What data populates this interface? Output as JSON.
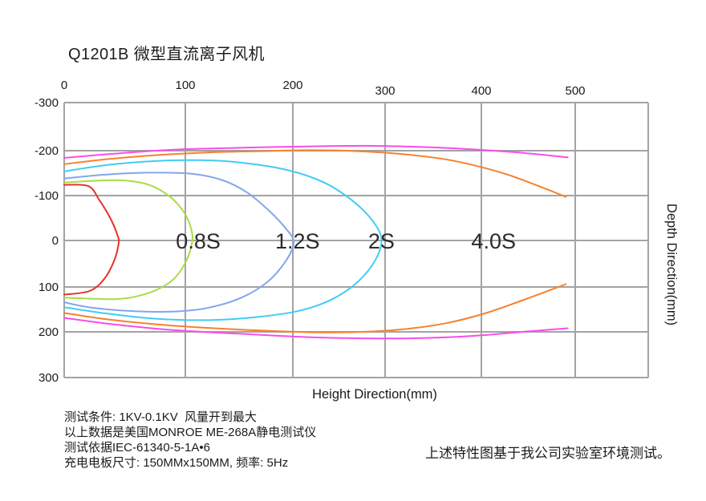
{
  "chart_data": {
    "type": "line",
    "subtype": "contour-map-of-discharge-time",
    "title": "Q1201B 微型直流离子风机",
    "xlabel": "Height Direction(mm)",
    "ylabel": "Depth Direction(mm)",
    "x_ticks": [
      0,
      100,
      200,
      300,
      400,
      500
    ],
    "y_ticks": [
      -300,
      -200,
      -100,
      0,
      100,
      200,
      300
    ],
    "xlim": [
      0,
      578
    ],
    "ylim": [
      -300,
      300
    ],
    "grid": true,
    "grid_color": "#a3a3a3",
    "label_color": "#2b2b2b",
    "tick_color": "#1a1a1a",
    "contour_labels": [
      {
        "text": "0.8S",
        "x": 112,
        "y": 0
      },
      {
        "text": "1.2S",
        "x": 205,
        "y": 0
      },
      {
        "text": "2S",
        "x": 296,
        "y": 0
      },
      {
        "text": "4.0S",
        "x": 413,
        "y": 0
      }
    ],
    "series": [
      {
        "name": "contour-inner-red",
        "label": "",
        "color": "#e5332a",
        "paths": [
          [
            [
              0,
              -124
            ],
            [
              20,
              -121
            ],
            [
              29,
              -90
            ],
            [
              38,
              -50
            ],
            [
              44,
              -12
            ],
            [
              45,
              6
            ],
            [
              41,
              45
            ],
            [
              33,
              83
            ],
            [
              21,
              109
            ],
            [
              0,
              117
            ]
          ]
        ]
      },
      {
        "name": "contour-0.8S-green",
        "label": "0.8S",
        "color": "#a8dc46",
        "paths": [
          [
            [
              0,
              -129
            ],
            [
              25,
              -133
            ],
            [
              48,
              -134
            ],
            [
              70,
              -124
            ],
            [
              88,
              -96
            ],
            [
              100,
              -58
            ],
            [
              106,
              -20
            ],
            [
              106,
              8
            ],
            [
              100,
              48
            ],
            [
              90,
              84
            ],
            [
              75,
              108
            ],
            [
              58,
              122
            ],
            [
              43,
              127
            ],
            [
              22,
              126
            ],
            [
              0,
              124
            ]
          ]
        ]
      },
      {
        "name": "contour-1.2S-blue",
        "label": "1.2S",
        "color": "#82a7ec",
        "paths": [
          [
            [
              0,
              -138
            ],
            [
              35,
              -147
            ],
            [
              70,
              -151
            ],
            [
              105,
              -149
            ],
            [
              135,
              -134
            ],
            [
              158,
              -106
            ],
            [
              178,
              -66
            ],
            [
              193,
              -28
            ],
            [
              201,
              3
            ],
            [
              194,
              42
            ],
            [
              177,
              88
            ],
            [
              152,
              124
            ],
            [
              120,
              147
            ],
            [
              88,
              155
            ],
            [
              52,
              153
            ],
            [
              20,
              145
            ],
            [
              0,
              134
            ]
          ]
        ]
      },
      {
        "name": "contour-2S-cyan",
        "label": "2S",
        "color": "#41ccf4",
        "paths": [
          [
            [
              0,
              -154
            ],
            [
              35,
              -168
            ],
            [
              75,
              -177
            ],
            [
              112,
              -179
            ],
            [
              150,
              -174
            ],
            [
              195,
              -157
            ],
            [
              235,
              -128
            ],
            [
              265,
              -88
            ],
            [
              286,
              -45
            ],
            [
              296,
              -4
            ],
            [
              290,
              40
            ],
            [
              271,
              88
            ],
            [
              242,
              128
            ],
            [
              205,
              154
            ],
            [
              162,
              168
            ],
            [
              118,
              174
            ],
            [
              72,
              170
            ],
            [
              32,
              158
            ],
            [
              0,
              145
            ]
          ]
        ]
      },
      {
        "name": "contour-4.0S-orange",
        "label": "4.0S",
        "color": "#f5822e",
        "paths": [
          [
            [
              0,
              -170
            ],
            [
              35,
              -181
            ],
            [
              75,
              -190
            ],
            [
              120,
              -196
            ],
            [
              170,
              -199
            ],
            [
              220,
              -201
            ],
            [
              270,
              -199
            ],
            [
              320,
              -192
            ],
            [
              370,
              -178
            ],
            [
              420,
              -152
            ],
            [
              460,
              -122
            ],
            [
              490,
              -97
            ]
          ],
          [
            [
              0,
              158
            ],
            [
              35,
              172
            ],
            [
              75,
              183
            ],
            [
              120,
              191
            ],
            [
              170,
              197
            ],
            [
              225,
              201
            ],
            [
              275,
              200
            ],
            [
              320,
              194
            ],
            [
              365,
              180
            ],
            [
              405,
              158
            ],
            [
              450,
              125
            ],
            [
              490,
              94
            ]
          ]
        ]
      },
      {
        "name": "contour-outer-magenta",
        "label": "",
        "color": "#f74deb",
        "paths": [
          [
            [
              0,
              -184
            ],
            [
              40,
              -193
            ],
            [
              90,
              -202
            ],
            [
              150,
              -206
            ],
            [
              220,
              -209
            ],
            [
              290,
              -210
            ],
            [
              360,
              -206
            ],
            [
              420,
              -199
            ],
            [
              460,
              -192
            ],
            [
              492,
              -185
            ]
          ],
          [
            [
              0,
              169
            ],
            [
              40,
              183
            ],
            [
              90,
              196
            ],
            [
              150,
              204
            ],
            [
              210,
              211
            ],
            [
              270,
              214
            ],
            [
              330,
              214
            ],
            [
              390,
              209
            ],
            [
              450,
              199
            ],
            [
              492,
              192
            ]
          ]
        ]
      }
    ]
  },
  "footnotes": {
    "lines": [
      "测试条件: 1KV-0.1KV  风量开到最大",
      "以上数据是美国MONROE ME-268A静电测试仪",
      "测试依据IEC-61340-5-1A•6",
      "充电电板尺寸: 150MMx150MM, 频率: 5Hz"
    ],
    "right_note": "上述特性图基于我公司实验室环境测试。"
  }
}
